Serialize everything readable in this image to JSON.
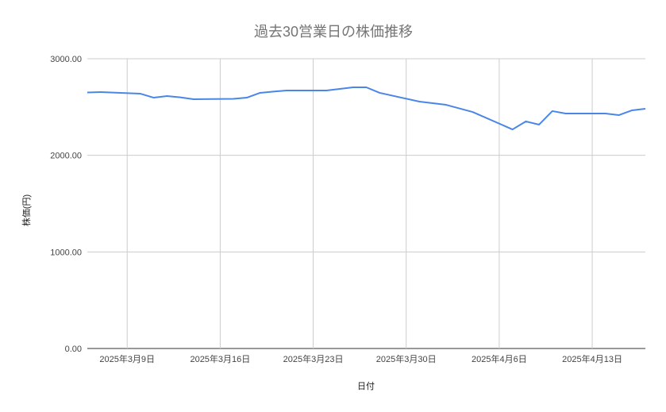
{
  "chart_data": {
    "type": "line",
    "title": "過去30営業日の株価推移",
    "xlabel": "日付",
    "ylabel": "株価(円)",
    "ylim": [
      0,
      3000
    ],
    "yticks": [
      "0.00",
      "1000.00",
      "2000.00",
      "3000.00"
    ],
    "xlim": [
      "2025-03-06",
      "2025-04-17"
    ],
    "xticks": [
      {
        "date": "2025-03-09",
        "label": "2025年3月9日"
      },
      {
        "date": "2025-03-16",
        "label": "2025年3月16日"
      },
      {
        "date": "2025-03-23",
        "label": "2025年3月23日"
      },
      {
        "date": "2025-03-30",
        "label": "2025年3月30日"
      },
      {
        "date": "2025-04-06",
        "label": "2025年4月6日"
      },
      {
        "date": "2025-04-13",
        "label": "2025年4月13日"
      }
    ],
    "grid": true,
    "line_color": "#4a86e8",
    "x": [
      "2025-03-06",
      "2025-03-07",
      "2025-03-10",
      "2025-03-11",
      "2025-03-12",
      "2025-03-13",
      "2025-03-14",
      "2025-03-17",
      "2025-03-18",
      "2025-03-19",
      "2025-03-20",
      "2025-03-21",
      "2025-03-24",
      "2025-03-25",
      "2025-03-26",
      "2025-03-27",
      "2025-03-28",
      "2025-03-31",
      "2025-04-01",
      "2025-04-02",
      "2025-04-03",
      "2025-04-04",
      "2025-04-07",
      "2025-04-08",
      "2025-04-09",
      "2025-04-10",
      "2025-04-11",
      "2025-04-14",
      "2025-04-15",
      "2025-04-16",
      "2025-04-17"
    ],
    "y": [
      2651,
      2655,
      2638,
      2597,
      2614,
      2600,
      2581,
      2585,
      2597,
      2647,
      2660,
      2671,
      2671,
      2688,
      2704,
      2704,
      2647,
      2556,
      2540,
      2523,
      2486,
      2449,
      2268,
      2351,
      2318,
      2458,
      2433,
      2433,
      2416,
      2466,
      2482
    ]
  }
}
